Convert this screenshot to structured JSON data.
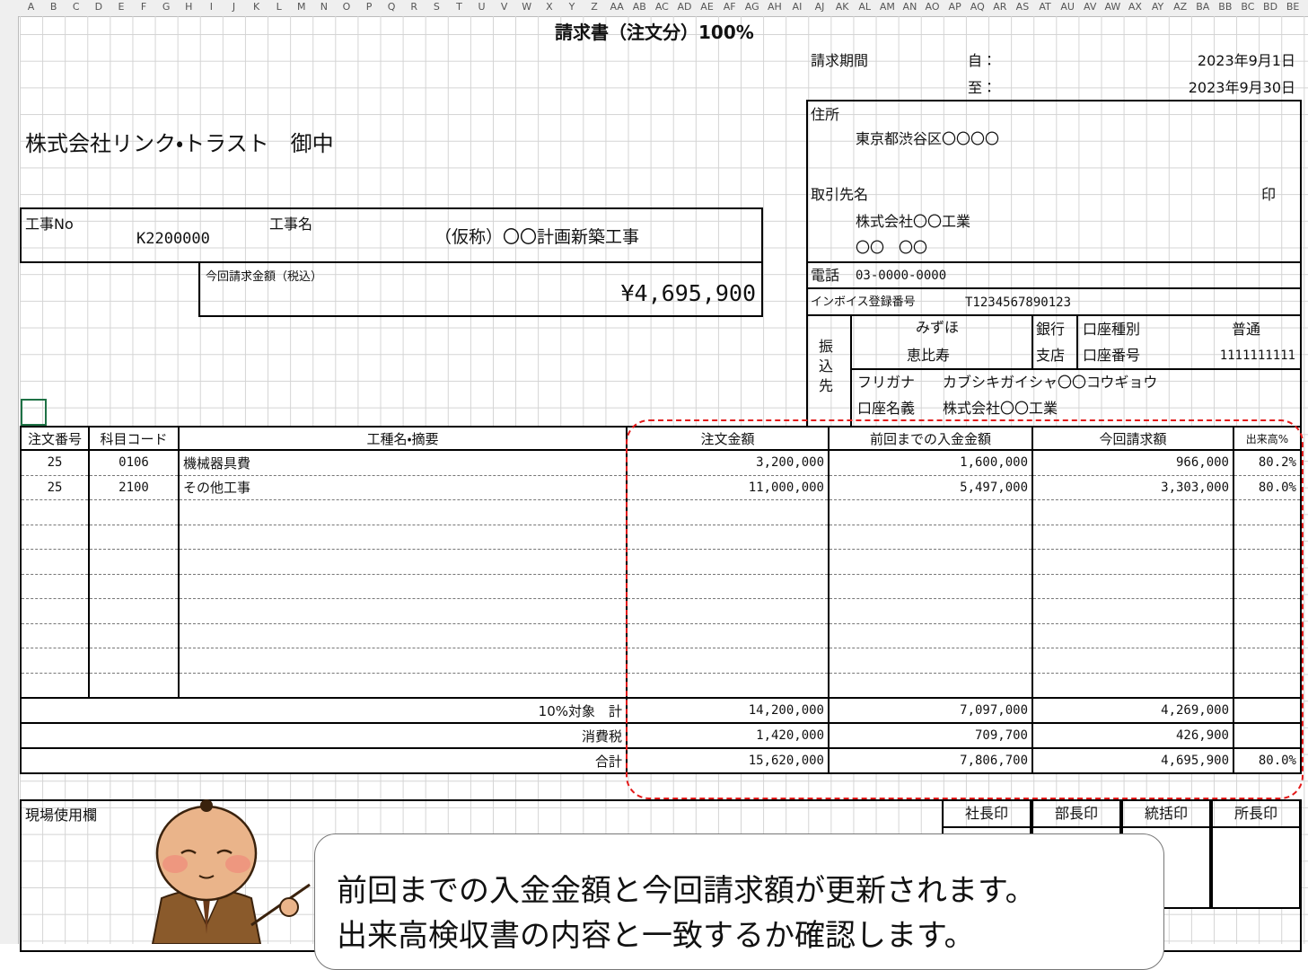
{
  "column_headers": [
    "A",
    "B",
    "C",
    "D",
    "E",
    "F",
    "G",
    "H",
    "I",
    "J",
    "K",
    "L",
    "M",
    "N",
    "O",
    "P",
    "Q",
    "R",
    "S",
    "T",
    "U",
    "V",
    "W",
    "X",
    "Y",
    "Z",
    "AA",
    "AB",
    "AC",
    "AD",
    "AE",
    "AF",
    "AG",
    "AH",
    "AI",
    "AJ",
    "AK",
    "AL",
    "AM",
    "AN",
    "AO",
    "AP",
    "AQ",
    "AR",
    "AS",
    "AT",
    "AU",
    "AV",
    "AW",
    "AX",
    "AY",
    "AZ",
    "BA",
    "BB",
    "BC",
    "BD",
    "BE"
  ],
  "title": "請求書（注文分）100%",
  "period": {
    "label": "請求期間",
    "from_label": "自：",
    "from": "2023年9月1日",
    "to_label": "至：",
    "to": "2023年9月30日"
  },
  "addressee": "株式会社リンク・トラスト　御中",
  "vendor": {
    "address_label": "住所",
    "address": "東京都渋谷区〇〇〇〇",
    "name_label": "取引先名",
    "seal": "印",
    "company": "株式会社〇〇工業",
    "person": "〇〇　〇〇",
    "phone_label": "電話",
    "phone": "03-0000-0000",
    "invoice_label": "インボイス登録番号",
    "invoice_no": "T1234567890123"
  },
  "bank": {
    "label": "振込先",
    "bank": "みずほ",
    "bank_suffix": "銀行",
    "type_label": "口座種別",
    "type": "普通",
    "branch": "恵比寿",
    "branch_suffix": "支店",
    "number_label": "口座番号",
    "number": "1111111111",
    "kana_label": "フリガナ",
    "kana": "カブシキガイシャ〇〇コウギョウ",
    "holder_label": "口座名義",
    "holder": "株式会社〇〇工業"
  },
  "project": {
    "no_label": "工事No",
    "no": "K2200000",
    "name_label": "工事名",
    "name": "（仮称）〇〇計画新築工事"
  },
  "amount": {
    "label": "今回請求金額（税込）",
    "value": "¥4,695,900"
  },
  "table": {
    "headers": [
      "注文番号",
      "科目コード",
      "工種名・摘要",
      "注文金額",
      "前回までの入金金額",
      "今回請求額",
      "出来高%"
    ],
    "rows": [
      [
        "25",
        "0106",
        "機械器具費",
        "3,200,000",
        "1,600,000",
        "966,000",
        "80.2%"
      ],
      [
        "25",
        "2100",
        "その他工事",
        "11,000,000",
        "5,497,000",
        "3,303,000",
        "80.0%"
      ]
    ],
    "totals": [
      {
        "label": "10%対象　計",
        "values": [
          "14,200,000",
          "7,097,000",
          "4,269,000"
        ]
      },
      {
        "label": "消費税",
        "values": [
          "1,420,000",
          "709,700",
          "426,900"
        ]
      },
      {
        "label": "合計",
        "values": [
          "15,620,000",
          "7,806,700",
          "4,695,900",
          "80.0%"
        ]
      }
    ]
  },
  "stamps": {
    "field_label": "現場使用欄",
    "labels": [
      "社長印",
      "部長印",
      "統括印",
      "所長印"
    ]
  },
  "callout": {
    "lines": [
      "前回までの入金金額と今回請求額が更新されます。",
      "出来高検収書の内容と一致するか確認します。"
    ]
  }
}
